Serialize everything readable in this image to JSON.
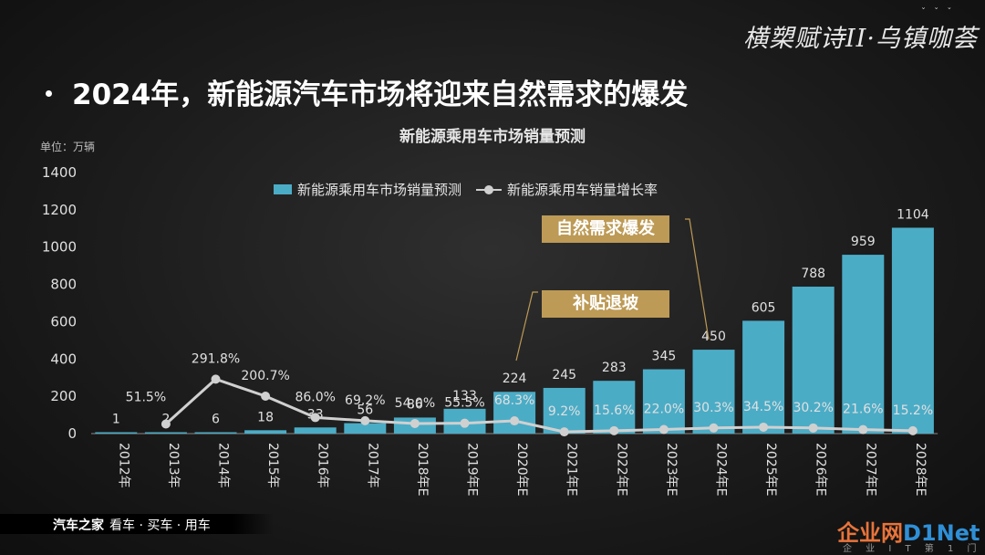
{
  "brand_top_right": "横槊赋诗II·乌镇咖荟",
  "headline": "2024年，新能源汽车市场将迎来自然需求的爆发",
  "footer": {
    "brand": "汽车之家",
    "slogan": "看车 · 买车 · 用车"
  },
  "watermark": {
    "part1": "企业网",
    "part2": "D1Net",
    "sub": "企 业 I T 第 1 门 户"
  },
  "callouts": {
    "demand": "自然需求爆发",
    "subsidy": "补贴退坡"
  },
  "chart_data": {
    "type": "bar",
    "title": "新能源乘用车市场销量预测",
    "unit_label": "单位：万辆",
    "categories": [
      "2012年",
      "2013年",
      "2014年",
      "2015年",
      "2016年",
      "2017年",
      "2018年E",
      "2019年E",
      "2020年E",
      "2021年E",
      "2022年E",
      "2023年E",
      "2024年E",
      "2025年E",
      "2026年E",
      "2027年E",
      "2028年E"
    ],
    "series": [
      {
        "name": "新能源乘用车市场销量预测",
        "type": "bar",
        "values": [
          1,
          2,
          6,
          18,
          33,
          56,
          86,
          133,
          224,
          245,
          283,
          345,
          450,
          605,
          788,
          959,
          1104
        ],
        "labels": [
          "1",
          "2",
          "6",
          "18",
          "33",
          "56",
          "86",
          "133",
          "224",
          "245",
          "283",
          "345",
          "450",
          "605",
          "788",
          "959",
          "1104"
        ]
      },
      {
        "name": "新能源乘用车销量增长率",
        "type": "line",
        "values": [
          null,
          51.5,
          291.8,
          200.7,
          86.0,
          69.2,
          54.0,
          55.5,
          68.3,
          9.2,
          15.6,
          22.0,
          30.3,
          34.5,
          30.2,
          21.6,
          15.2
        ],
        "labels": [
          "",
          "51.5%",
          "291.8%",
          "200.7%",
          "86.0%",
          "69.2%",
          "54.0%",
          "55.5%",
          "68.3%",
          "9.2%",
          "15.6%",
          "22.0%",
          "30.3%",
          "34.5%",
          "30.2%",
          "21.6%",
          "15.2%"
        ]
      }
    ],
    "ylim": [
      0,
      1400
    ],
    "yticks": [
      "0",
      "200",
      "400",
      "600",
      "800",
      "1000",
      "1200",
      "1400"
    ],
    "legend_position": "top-center",
    "grid": false,
    "colors": {
      "bar": "#4bacc6",
      "line": "#d0d0d0",
      "callout": "#bd9a55"
    }
  }
}
